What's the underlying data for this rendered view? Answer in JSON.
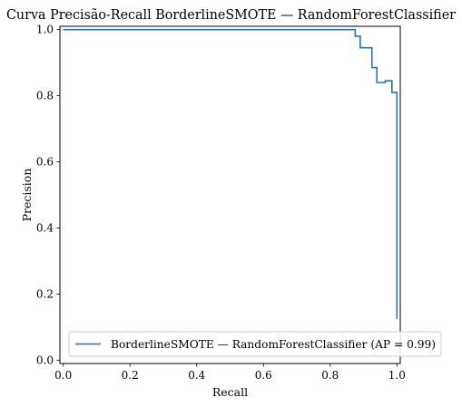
{
  "chart_data": {
    "type": "line",
    "title": "Curva Precisão-Recall BorderlineSMOTE — RandomForestClassifier",
    "xlabel": "Recall",
    "ylabel": "Precision",
    "xlim": [
      -0.01,
      1.01
    ],
    "ylim": [
      -0.01,
      1.01
    ],
    "xticks": [
      0.0,
      0.2,
      0.4,
      0.6,
      0.8,
      1.0
    ],
    "yticks": [
      0.0,
      0.2,
      0.4,
      0.6,
      0.8,
      1.0
    ],
    "xtick_labels": [
      "0.0",
      "0.2",
      "0.4",
      "0.6",
      "0.8",
      "1.0"
    ],
    "ytick_labels": [
      "0.0",
      "0.2",
      "0.4",
      "0.6",
      "0.8",
      "1.0"
    ],
    "grid": false,
    "legend_position": "lower-right",
    "series": [
      {
        "name": "BorderlineSMOTE — RandomForestClassifier (AP = 0.99)",
        "color": "#1f77b4",
        "drawstyle": "steps-post",
        "x": [
          0.0,
          0.875,
          0.875,
          0.89,
          0.89,
          0.925,
          0.925,
          0.94,
          0.94,
          0.965,
          0.965,
          0.985,
          0.985,
          1.0,
          1.0
        ],
        "y": [
          1.0,
          1.0,
          0.98,
          0.98,
          0.945,
          0.945,
          0.885,
          0.885,
          0.84,
          0.84,
          0.845,
          0.845,
          0.81,
          0.81,
          0.125
        ]
      }
    ]
  }
}
